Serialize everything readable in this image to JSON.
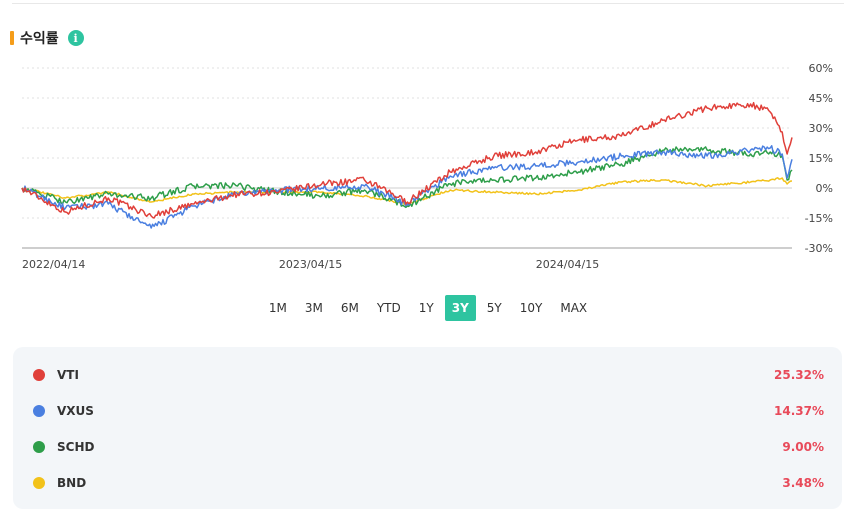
{
  "section": {
    "title": "수익률",
    "info_icon": "i"
  },
  "ranges": [
    "1M",
    "3M",
    "6M",
    "YTD",
    "1Y",
    "3Y",
    "5Y",
    "10Y",
    "MAX"
  ],
  "active_range": "3Y",
  "colors": {
    "accent": "#f59d1a",
    "active": "#2ec4a0",
    "positive": "#e84a5a"
  },
  "legend": [
    {
      "name": "VTI",
      "value": "25.32%",
      "color": "#e0403a"
    },
    {
      "name": "VXUS",
      "value": "14.37%",
      "color": "#4a7fe0"
    },
    {
      "name": "SCHD",
      "value": "9.00%",
      "color": "#2e9e4a"
    },
    {
      "name": "BND",
      "value": "3.48%",
      "color": "#f2c21a"
    }
  ],
  "chart_data": {
    "type": "line",
    "yticks": [
      "60%",
      "45%",
      "30%",
      "15%",
      "0%",
      "-15%",
      "-30%"
    ],
    "ylim": [
      -30,
      60
    ],
    "xticks": [
      "2022/04/14",
      "2023/04/15",
      "2024/04/15"
    ],
    "xlim": [
      "2022/04/14",
      "2025/04/15"
    ],
    "grid": true,
    "series": [
      {
        "name": "VTI",
        "color": "#e0403a",
        "x": [
          "2022/04/14",
          "2022/06/15",
          "2022/08/15",
          "2022/10/15",
          "2022/12/15",
          "2023/02/15",
          "2023/04/15",
          "2023/06/15",
          "2023/08/15",
          "2023/10/15",
          "2023/12/15",
          "2024/02/15",
          "2024/04/15",
          "2024/06/15",
          "2024/08/15",
          "2024/10/15",
          "2024/12/15",
          "2025/02/15",
          "2025/03/15",
          "2025/04/01",
          "2025/04/08",
          "2025/04/15"
        ],
        "y": [
          0,
          -12,
          -5,
          -14,
          -8,
          -3,
          -2,
          2,
          4,
          -7,
          8,
          16,
          18,
          24,
          26,
          34,
          40,
          42,
          38,
          28,
          17,
          25.32
        ]
      },
      {
        "name": "VXUS",
        "color": "#4a7fe0",
        "x": [
          "2022/04/14",
          "2022/06/15",
          "2022/08/15",
          "2022/10/15",
          "2022/12/15",
          "2023/02/15",
          "2023/04/15",
          "2023/06/15",
          "2023/08/15",
          "2023/10/15",
          "2023/12/15",
          "2024/02/15",
          "2024/04/15",
          "2024/06/15",
          "2024/08/15",
          "2024/10/15",
          "2024/12/15",
          "2025/02/15",
          "2025/03/15",
          "2025/04/01",
          "2025/04/08",
          "2025/04/15"
        ],
        "y": [
          0,
          -10,
          -8,
          -20,
          -9,
          -3,
          -1,
          0,
          1,
          -8,
          6,
          10,
          11,
          13,
          16,
          18,
          16,
          19,
          20,
          17,
          5,
          14.37
        ]
      },
      {
        "name": "SCHD",
        "color": "#2e9e4a",
        "x": [
          "2022/04/14",
          "2022/06/15",
          "2022/08/15",
          "2022/10/15",
          "2022/12/15",
          "2023/02/15",
          "2023/04/15",
          "2023/06/15",
          "2023/08/15",
          "2023/10/15",
          "2023/12/15",
          "2024/02/15",
          "2024/04/15",
          "2024/06/15",
          "2024/08/15",
          "2024/10/15",
          "2024/12/15",
          "2025/02/15",
          "2025/03/15",
          "2025/04/01",
          "2025/04/08",
          "2025/04/15"
        ],
        "y": [
          0,
          -7,
          -3,
          -5,
          1,
          1,
          -2,
          -4,
          -1,
          -9,
          2,
          4,
          5,
          8,
          12,
          19,
          19,
          17,
          18,
          16,
          4,
          9.0
        ]
      },
      {
        "name": "BND",
        "color": "#f2c21a",
        "x": [
          "2022/04/14",
          "2022/06/15",
          "2022/08/15",
          "2022/10/15",
          "2022/12/15",
          "2023/02/15",
          "2023/04/15",
          "2023/06/15",
          "2023/08/15",
          "2023/10/15",
          "2023/12/15",
          "2024/02/15",
          "2024/04/15",
          "2024/06/15",
          "2024/08/15",
          "2024/10/15",
          "2024/12/15",
          "2025/02/15",
          "2025/03/15",
          "2025/04/01",
          "2025/04/08",
          "2025/04/15"
        ],
        "y": [
          0,
          -5,
          -2,
          -7,
          -3,
          -2,
          -2,
          -2,
          -4,
          -8,
          -1,
          -2,
          -3,
          -1,
          3,
          4,
          1,
          3,
          4,
          5,
          2,
          3.48
        ]
      }
    ]
  }
}
